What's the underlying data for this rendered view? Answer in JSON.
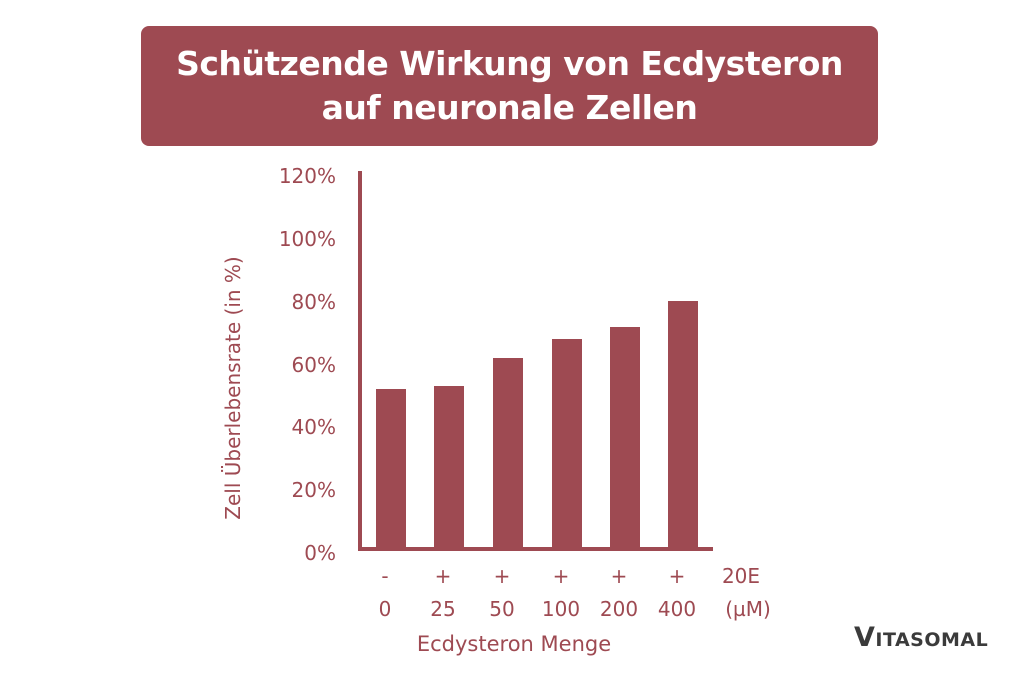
{
  "title": "Schützende Wirkung von Ecdysteron auf neuronale Zellen",
  "brand": {
    "logo_first": "V",
    "logo_rest": "ITASOMAL"
  },
  "colors": {
    "accent": "#9e4a52",
    "logo": "#3b3b3b",
    "background": "#ffffff"
  },
  "chart_data": {
    "type": "bar",
    "title": "Schützende Wirkung von Ecdysteron auf neuronale Zellen",
    "xlabel": "Ecdysteron Menge",
    "ylabel": "Zell Überlebensrate (in %)",
    "ylim": [
      0,
      120
    ],
    "yticks": [
      "0%",
      "20%",
      "40%",
      "60%",
      "80%",
      "100%",
      "120%"
    ],
    "categories": [
      "0",
      "25",
      "50",
      "100",
      "200",
      "400"
    ],
    "category_signs": [
      "-",
      "+",
      "+",
      "+",
      "+",
      "+"
    ],
    "row_labels": {
      "sign_row": "20E",
      "value_row": "(µM)"
    },
    "values": [
      51,
      52,
      61,
      67,
      71,
      79
    ],
    "grid": false,
    "legend": null
  }
}
